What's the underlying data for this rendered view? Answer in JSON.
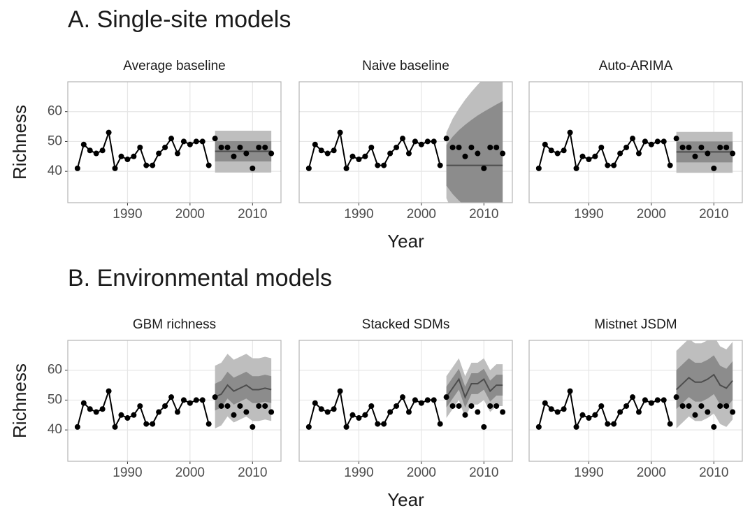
{
  "sections": [
    {
      "title": "A. Single-site models",
      "x_label": "Year",
      "y_label": "Richness"
    },
    {
      "title": "B. Environmental models",
      "x_label": "Year",
      "y_label": "Richness"
    }
  ],
  "chart_data": [
    {
      "type": "line",
      "title": "Average baseline",
      "x": [
        1982,
        1983,
        1984,
        1985,
        1986,
        1987,
        1988,
        1989,
        1990,
        1991,
        1992,
        1993,
        1994,
        1995,
        1996,
        1997,
        1998,
        1999,
        2000,
        2001,
        2002,
        2003,
        2004,
        2005,
        2006,
        2007,
        2008,
        2009,
        2010,
        2011,
        2012,
        2013
      ],
      "values": [
        41,
        49,
        47,
        46,
        47,
        53,
        41,
        45,
        44,
        45,
        48,
        42,
        42,
        46,
        48,
        51,
        46,
        50,
        49,
        50,
        50,
        42,
        51,
        48,
        48,
        45,
        48,
        46,
        41,
        48,
        48,
        46
      ],
      "forecast": {
        "x": [
          2004,
          2005,
          2006,
          2007,
          2008,
          2009,
          2010,
          2011,
          2012,
          2013
        ],
        "mean": [
          46.7,
          46.7,
          46.7,
          46.7,
          46.7,
          46.7,
          46.7,
          46.7,
          46.7,
          46.7
        ],
        "inner_lower": [
          43.3,
          43.3,
          43.3,
          43.3,
          43.3,
          43.3,
          43.3,
          43.3,
          43.3,
          43.3
        ],
        "inner_upper": [
          50.1,
          50.1,
          50.1,
          50.1,
          50.1,
          50.1,
          50.1,
          50.1,
          50.1,
          50.1
        ],
        "outer_lower": [
          39.6,
          39.6,
          39.6,
          39.6,
          39.6,
          39.6,
          39.6,
          39.6,
          39.6,
          39.6
        ],
        "outer_upper": [
          53.6,
          53.6,
          53.6,
          53.6,
          53.6,
          53.6,
          53.6,
          53.6,
          53.6,
          53.6
        ]
      },
      "xlim": [
        1980.45,
        2014.55
      ],
      "ylim": [
        29.5,
        70
      ],
      "xticks": [
        1990,
        2000,
        2010
      ],
      "yticks": [
        40,
        50,
        60
      ],
      "grid": true,
      "color": "#000000",
      "mean_color": "#4d4d4d",
      "inner_color": "#8c8c8c",
      "outer_color": "#bebebe"
    },
    {
      "type": "line",
      "title": "Naive baseline",
      "x": [
        1982,
        1983,
        1984,
        1985,
        1986,
        1987,
        1988,
        1989,
        1990,
        1991,
        1992,
        1993,
        1994,
        1995,
        1996,
        1997,
        1998,
        1999,
        2000,
        2001,
        2002,
        2003,
        2004,
        2005,
        2006,
        2007,
        2008,
        2009,
        2010,
        2011,
        2012,
        2013
      ],
      "values": [
        41,
        49,
        47,
        46,
        47,
        53,
        41,
        45,
        44,
        45,
        48,
        42,
        42,
        46,
        48,
        51,
        46,
        50,
        49,
        50,
        50,
        42,
        51,
        48,
        48,
        45,
        48,
        46,
        41,
        48,
        48,
        46
      ],
      "forecast": {
        "x": [
          2004,
          2005,
          2006,
          2007,
          2008,
          2009,
          2010,
          2011,
          2012,
          2013
        ],
        "mean": [
          42,
          42,
          42,
          42,
          42,
          42,
          42,
          42,
          42,
          42
        ],
        "inner_lower": [
          35.2,
          32.4,
          30.2,
          28.4,
          26.8,
          25.3,
          24,
          22.8,
          21.6,
          20.5
        ],
        "inner_upper": [
          48.8,
          51.6,
          53.8,
          55.6,
          57.2,
          58.7,
          60,
          61.2,
          62.4,
          63.5
        ],
        "outer_lower": [
          31,
          26.4,
          23,
          20,
          17.4,
          15,
          12.9,
          10.9,
          9,
          7.2
        ],
        "outer_upper": [
          53,
          57.6,
          61,
          64,
          66.6,
          69,
          71.1,
          73.1,
          75,
          76.8
        ]
      },
      "xlim": [
        1980.45,
        2014.55
      ],
      "ylim": [
        29.5,
        70
      ],
      "xticks": [
        1990,
        2000,
        2010
      ],
      "yticks": [
        40,
        50,
        60
      ],
      "grid": true,
      "color": "#000000",
      "mean_color": "#4d4d4d",
      "inner_color": "#8c8c8c",
      "outer_color": "#bebebe"
    },
    {
      "type": "line",
      "title": "Auto-ARIMA",
      "x": [
        1982,
        1983,
        1984,
        1985,
        1986,
        1987,
        1988,
        1989,
        1990,
        1991,
        1992,
        1993,
        1994,
        1995,
        1996,
        1997,
        1998,
        1999,
        2000,
        2001,
        2002,
        2003,
        2004,
        2005,
        2006,
        2007,
        2008,
        2009,
        2010,
        2011,
        2012,
        2013
      ],
      "values": [
        41,
        49,
        47,
        46,
        47,
        53,
        41,
        45,
        44,
        45,
        48,
        42,
        42,
        46,
        48,
        51,
        46,
        50,
        49,
        50,
        50,
        42,
        51,
        48,
        48,
        45,
        48,
        46,
        41,
        48,
        48,
        46
      ],
      "forecast": {
        "x": [
          2004,
          2005,
          2006,
          2007,
          2008,
          2009,
          2010,
          2011,
          2012,
          2013
        ],
        "mean": [
          46.5,
          46.5,
          46.5,
          46.5,
          46.5,
          46.5,
          46.5,
          46.5,
          46.5,
          46.5
        ],
        "inner_lower": [
          43,
          43,
          43,
          43,
          43,
          43,
          43,
          43,
          43,
          43
        ],
        "inner_upper": [
          50,
          50,
          50,
          50,
          50,
          50,
          50,
          50,
          50,
          50
        ],
        "outer_lower": [
          39.5,
          39.5,
          39.5,
          39.5,
          39.5,
          39.5,
          39.5,
          39.5,
          39.5,
          39.5
        ],
        "outer_upper": [
          53.2,
          53.2,
          53.2,
          53.2,
          53.2,
          53.2,
          53.2,
          53.2,
          53.2,
          53.2
        ]
      },
      "xlim": [
        1980.45,
        2014.55
      ],
      "ylim": [
        29.5,
        70
      ],
      "xticks": [
        1990,
        2000,
        2010
      ],
      "yticks": [
        40,
        50,
        60
      ],
      "grid": true,
      "color": "#000000",
      "mean_color": "#4d4d4d",
      "inner_color": "#8c8c8c",
      "outer_color": "#bebebe"
    },
    {
      "type": "line",
      "title": "GBM richness",
      "x": [
        1982,
        1983,
        1984,
        1985,
        1986,
        1987,
        1988,
        1989,
        1990,
        1991,
        1992,
        1993,
        1994,
        1995,
        1996,
        1997,
        1998,
        1999,
        2000,
        2001,
        2002,
        2003,
        2004,
        2005,
        2006,
        2007,
        2008,
        2009,
        2010,
        2011,
        2012,
        2013
      ],
      "values": [
        41,
        49,
        47,
        46,
        47,
        53,
        41,
        45,
        44,
        45,
        48,
        42,
        42,
        46,
        48,
        51,
        46,
        50,
        49,
        50,
        50,
        42,
        51,
        48,
        48,
        45,
        48,
        46,
        41,
        48,
        48,
        46
      ],
      "forecast": {
        "x": [
          2004,
          2005,
          2006,
          2007,
          2008,
          2009,
          2010,
          2011,
          2012,
          2013
        ],
        "mean": [
          51,
          52,
          55,
          53,
          54,
          55,
          53.5,
          53.5,
          54,
          53.5
        ],
        "inner_lower": [
          46.5,
          47.5,
          50.5,
          48.5,
          49.5,
          50.5,
          49,
          49,
          49.5,
          49
        ],
        "inner_upper": [
          55.5,
          56.5,
          59.5,
          57.5,
          58.5,
          59.5,
          58,
          58,
          58.5,
          58
        ],
        "outer_lower": [
          40.5,
          41.5,
          44.5,
          42.5,
          43.5,
          44.5,
          43,
          43,
          43.5,
          43
        ],
        "outer_upper": [
          61.5,
          62.5,
          65.5,
          63.5,
          64.5,
          65.5,
          64,
          64,
          64.5,
          64
        ]
      },
      "xlim": [
        1980.45,
        2014.55
      ],
      "ylim": [
        29.5,
        70
      ],
      "xticks": [
        1990,
        2000,
        2010
      ],
      "yticks": [
        40,
        50,
        60
      ],
      "grid": true,
      "color": "#000000",
      "mean_color": "#4d4d4d",
      "inner_color": "#8c8c8c",
      "outer_color": "#bebebe"
    },
    {
      "type": "line",
      "title": "Stacked SDMs",
      "x": [
        1982,
        1983,
        1984,
        1985,
        1986,
        1987,
        1988,
        1989,
        1990,
        1991,
        1992,
        1993,
        1994,
        1995,
        1996,
        1997,
        1998,
        1999,
        2000,
        2001,
        2002,
        2003,
        2004,
        2005,
        2006,
        2007,
        2008,
        2009,
        2010,
        2011,
        2012,
        2013
      ],
      "values": [
        41,
        49,
        47,
        46,
        47,
        53,
        41,
        45,
        44,
        45,
        48,
        42,
        42,
        46,
        48,
        51,
        46,
        50,
        49,
        50,
        50,
        42,
        51,
        48,
        48,
        45,
        48,
        46,
        41,
        48,
        48,
        46
      ],
      "forecast": {
        "x": [
          2004,
          2005,
          2006,
          2007,
          2008,
          2009,
          2010,
          2011,
          2012,
          2013
        ],
        "mean": [
          51,
          54,
          57,
          51,
          55.5,
          55.5,
          57,
          53,
          55,
          55
        ],
        "inner_lower": [
          47.5,
          50.5,
          53.5,
          47.5,
          52,
          52,
          53.5,
          49.5,
          51.5,
          51.5
        ],
        "inner_upper": [
          54.5,
          57.5,
          60.5,
          54.5,
          59,
          59,
          60.5,
          56.5,
          58.5,
          58.5
        ],
        "outer_lower": [
          44,
          47,
          50,
          44,
          48.5,
          48.5,
          50,
          46,
          48,
          48
        ],
        "outer_upper": [
          58,
          61,
          64,
          58,
          62.5,
          62.5,
          64,
          60,
          62,
          62
        ]
      },
      "xlim": [
        1980.45,
        2014.55
      ],
      "ylim": [
        29.5,
        70
      ],
      "xticks": [
        1990,
        2000,
        2010
      ],
      "yticks": [
        40,
        50,
        60
      ],
      "grid": true,
      "color": "#000000",
      "mean_color": "#4d4d4d",
      "inner_color": "#8c8c8c",
      "outer_color": "#bebebe"
    },
    {
      "type": "line",
      "title": "Mistnet JSDM",
      "x": [
        1982,
        1983,
        1984,
        1985,
        1986,
        1987,
        1988,
        1989,
        1990,
        1991,
        1992,
        1993,
        1994,
        1995,
        1996,
        1997,
        1998,
        1999,
        2000,
        2001,
        2002,
        2003,
        2004,
        2005,
        2006,
        2007,
        2008,
        2009,
        2010,
        2011,
        2012,
        2013
      ],
      "values": [
        41,
        49,
        47,
        46,
        47,
        53,
        41,
        45,
        44,
        45,
        48,
        42,
        42,
        46,
        48,
        51,
        46,
        50,
        49,
        50,
        50,
        42,
        51,
        48,
        48,
        45,
        48,
        46,
        41,
        48,
        48,
        46
      ],
      "forecast": {
        "x": [
          2004,
          2005,
          2006,
          2007,
          2008,
          2009,
          2010,
          2011,
          2012,
          2013
        ],
        "mean": [
          53.5,
          55.5,
          57.5,
          56,
          56,
          57,
          58.5,
          55,
          54,
          56.5
        ],
        "inner_lower": [
          47,
          49,
          51,
          49.5,
          49.5,
          50.5,
          52,
          48.5,
          47.5,
          50
        ],
        "inner_upper": [
          60,
          62,
          64,
          62.5,
          62.5,
          63.5,
          65,
          61.5,
          60.5,
          63
        ],
        "outer_lower": [
          40.5,
          42.5,
          44.5,
          43,
          43,
          44,
          45.5,
          42,
          41,
          43.5
        ],
        "outer_upper": [
          66.5,
          68.5,
          70.5,
          69,
          69,
          70,
          71.5,
          68,
          67,
          69.5
        ]
      },
      "xlim": [
        1980.45,
        2014.55
      ],
      "ylim": [
        29.5,
        70
      ],
      "xticks": [
        1990,
        2000,
        2010
      ],
      "yticks": [
        40,
        50,
        60
      ],
      "grid": true,
      "color": "#000000",
      "mean_color": "#4d4d4d",
      "inner_color": "#8c8c8c",
      "outer_color": "#bebebe"
    }
  ]
}
